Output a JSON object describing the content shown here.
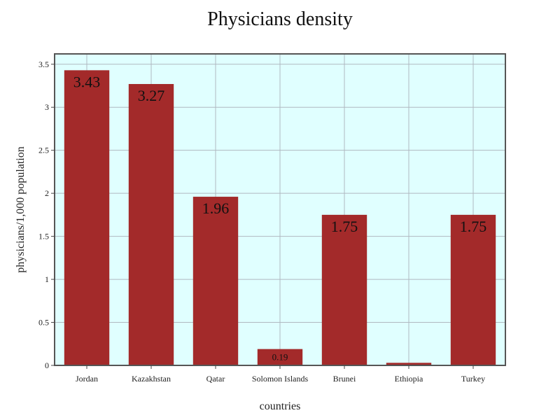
{
  "chart_data": {
    "type": "bar",
    "title": "Physicians density",
    "xlabel": "countries",
    "ylabel": "physicians/1,000 population",
    "categories": [
      "Jordan",
      "Kazakhstan",
      "Qatar",
      "Solomon Islands",
      "Brunei",
      "Ethiopia",
      "Turkey"
    ],
    "values": [
      3.43,
      3.27,
      1.96,
      0.19,
      1.75,
      0.03,
      1.75
    ],
    "data_labels": [
      "3.43",
      "3.27",
      "1.96",
      "0.19",
      "1.75",
      "",
      "1.75"
    ],
    "ylim": [
      0,
      3.62
    ],
    "yticks": [
      0,
      0.5,
      1,
      1.5,
      2,
      2.5,
      3,
      3.5
    ],
    "ytick_labels": [
      "0",
      "0.5",
      "1",
      "1.5",
      "2",
      "2.5",
      "3",
      "3.5"
    ],
    "grid": true,
    "colors": {
      "bar": "#a32a2a",
      "plot_background": "#e0ffff",
      "grid": "#b0b8c0",
      "frame": "#555555"
    }
  }
}
